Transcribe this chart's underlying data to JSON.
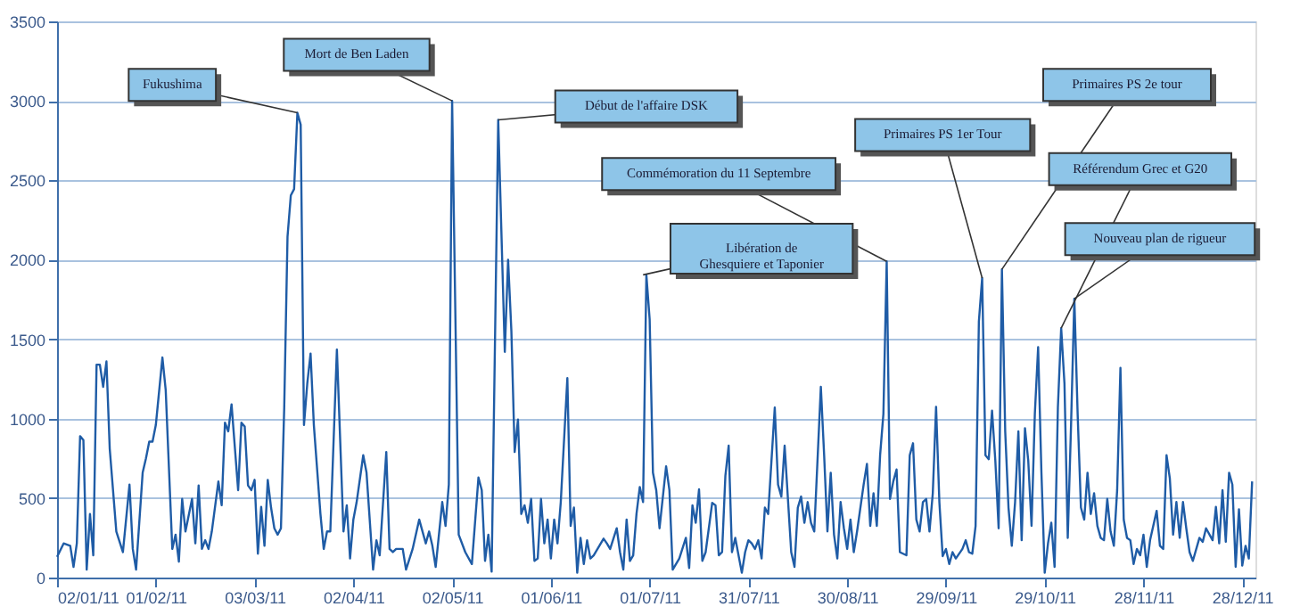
{
  "chart_data": {
    "type": "line",
    "x": [
      "2011-01-02",
      "2011-01-04",
      "2011-01-06",
      "2011-01-07",
      "2011-01-08",
      "2011-01-09",
      "2011-01-10",
      "2011-01-11",
      "2011-01-12",
      "2011-01-13",
      "2011-01-14",
      "2011-01-15",
      "2011-01-16",
      "2011-01-17",
      "2011-01-18",
      "2011-01-20",
      "2011-01-22",
      "2011-01-24",
      "2011-01-25",
      "2011-01-26",
      "2011-01-28",
      "2011-01-29",
      "2011-01-30",
      "2011-01-31",
      "2011-02-01",
      "2011-02-03",
      "2011-02-04",
      "2011-02-06",
      "2011-02-07",
      "2011-02-08",
      "2011-02-09",
      "2011-02-10",
      "2011-02-12",
      "2011-02-13",
      "2011-02-14",
      "2011-02-15",
      "2011-02-16",
      "2011-02-17",
      "2011-02-18",
      "2011-02-20",
      "2011-02-21",
      "2011-02-22",
      "2011-02-23",
      "2011-02-24",
      "2011-02-26",
      "2011-02-27",
      "2011-02-28",
      "2011-03-01",
      "2011-03-02",
      "2011-03-03",
      "2011-03-04",
      "2011-03-05",
      "2011-03-06",
      "2011-03-07",
      "2011-03-08",
      "2011-03-09",
      "2011-03-10",
      "2011-03-11",
      "2011-03-12",
      "2011-03-13",
      "2011-03-14",
      "2011-03-15",
      "2011-03-16",
      "2011-03-17",
      "2011-03-18",
      "2011-03-19",
      "2011-03-20",
      "2011-03-21",
      "2011-03-23",
      "2011-03-24",
      "2011-03-25",
      "2011-03-26",
      "2011-03-28",
      "2011-03-30",
      "2011-03-31",
      "2011-04-01",
      "2011-04-02",
      "2011-04-03",
      "2011-04-05",
      "2011-04-06",
      "2011-04-08",
      "2011-04-09",
      "2011-04-10",
      "2011-04-12",
      "2011-04-13",
      "2011-04-14",
      "2011-04-15",
      "2011-04-17",
      "2011-04-18",
      "2011-04-20",
      "2011-04-22",
      "2011-04-24",
      "2011-04-25",
      "2011-04-26",
      "2011-04-27",
      "2011-04-29",
      "2011-04-30",
      "2011-05-01",
      "2011-05-02",
      "2011-05-04",
      "2011-05-06",
      "2011-05-08",
      "2011-05-10",
      "2011-05-11",
      "2011-05-12",
      "2011-05-13",
      "2011-05-14",
      "2011-05-16",
      "2011-05-18",
      "2011-05-19",
      "2011-05-20",
      "2011-05-21",
      "2011-05-22",
      "2011-05-23",
      "2011-05-24",
      "2011-05-25",
      "2011-05-26",
      "2011-05-27",
      "2011-05-28",
      "2011-05-29",
      "2011-05-30",
      "2011-05-31",
      "2011-06-01",
      "2011-06-02",
      "2011-06-03",
      "2011-06-04",
      "2011-06-06",
      "2011-06-07",
      "2011-06-08",
      "2011-06-09",
      "2011-06-10",
      "2011-06-11",
      "2011-06-12",
      "2011-06-13",
      "2011-06-14",
      "2011-06-17",
      "2011-06-18",
      "2011-06-19",
      "2011-06-21",
      "2011-06-22",
      "2011-06-23",
      "2011-06-24",
      "2011-06-25",
      "2011-06-26",
      "2011-06-27",
      "2011-06-28",
      "2011-06-29",
      "2011-06-30",
      "2011-07-01",
      "2011-07-02",
      "2011-07-03",
      "2011-07-04",
      "2011-07-06",
      "2011-07-07",
      "2011-07-08",
      "2011-07-10",
      "2011-07-12",
      "2011-07-13",
      "2011-07-14",
      "2011-07-15",
      "2011-07-16",
      "2011-07-17",
      "2011-07-18",
      "2011-07-20",
      "2011-07-21",
      "2011-07-22",
      "2011-07-23",
      "2011-07-24",
      "2011-07-25",
      "2011-07-26",
      "2011-07-27",
      "2011-07-29",
      "2011-07-30",
      "2011-07-31",
      "2011-08-01",
      "2011-08-02",
      "2011-08-03",
      "2011-08-04",
      "2011-08-05",
      "2011-08-06",
      "2011-08-08",
      "2011-08-09",
      "2011-08-10",
      "2011-08-11",
      "2011-08-12",
      "2011-08-13",
      "2011-08-14",
      "2011-08-15",
      "2011-08-16",
      "2011-08-17",
      "2011-08-18",
      "2011-08-19",
      "2011-08-20",
      "2011-08-22",
      "2011-08-23",
      "2011-08-24",
      "2011-08-25",
      "2011-08-26",
      "2011-08-27",
      "2011-08-28",
      "2011-08-29",
      "2011-08-30",
      "2011-08-31",
      "2011-09-01",
      "2011-09-02",
      "2011-09-04",
      "2011-09-05",
      "2011-09-06",
      "2011-09-07",
      "2011-09-08",
      "2011-09-09",
      "2011-09-10",
      "2011-09-11",
      "2011-09-12",
      "2011-09-13",
      "2011-09-14",
      "2011-09-15",
      "2011-09-17",
      "2011-09-18",
      "2011-09-19",
      "2011-09-20",
      "2011-09-21",
      "2011-09-22",
      "2011-09-23",
      "2011-09-24",
      "2011-09-25",
      "2011-09-26",
      "2011-09-27",
      "2011-09-28",
      "2011-09-29",
      "2011-09-30",
      "2011-10-01",
      "2011-10-02",
      "2011-10-04",
      "2011-10-05",
      "2011-10-06",
      "2011-10-07",
      "2011-10-08",
      "2011-10-09",
      "2011-10-10",
      "2011-10-11",
      "2011-10-12",
      "2011-10-13",
      "2011-10-14",
      "2011-10-15",
      "2011-10-16",
      "2011-10-17",
      "2011-10-18",
      "2011-10-19",
      "2011-10-20",
      "2011-10-21",
      "2011-10-22",
      "2011-10-23",
      "2011-10-24",
      "2011-10-25",
      "2011-10-26",
      "2011-10-27",
      "2011-10-28",
      "2011-10-29",
      "2011-10-30",
      "2011-10-31",
      "2011-11-01",
      "2011-11-02",
      "2011-11-03",
      "2011-11-04",
      "2011-11-05",
      "2011-11-06",
      "2011-11-07",
      "2011-11-08",
      "2011-11-09",
      "2011-11-10",
      "2011-11-11",
      "2011-11-12",
      "2011-11-13",
      "2011-11-14",
      "2011-11-15",
      "2011-11-16",
      "2011-11-17",
      "2011-11-18",
      "2011-11-19",
      "2011-11-20",
      "2011-11-21",
      "2011-11-22",
      "2011-11-23",
      "2011-11-24",
      "2011-11-25",
      "2011-11-26",
      "2011-11-27",
      "2011-11-28",
      "2011-11-29",
      "2011-11-30",
      "2011-12-02",
      "2011-12-03",
      "2011-12-04",
      "2011-12-05",
      "2011-12-06",
      "2011-12-07",
      "2011-12-08",
      "2011-12-09",
      "2011-12-10",
      "2011-12-11",
      "2011-12-12",
      "2011-12-13",
      "2011-12-15",
      "2011-12-16",
      "2011-12-17",
      "2011-12-19",
      "2011-12-20",
      "2011-12-21",
      "2011-12-22",
      "2011-12-23",
      "2011-12-24",
      "2011-12-25",
      "2011-12-26",
      "2011-12-27",
      "2011-12-28",
      "2011-12-29",
      "2011-12-30",
      "2011-12-31"
    ],
    "series": [
      {
        "color": "#1f5ca6",
        "values": [
          130,
          215,
          200,
          67,
          215,
          890,
          865,
          50,
          400,
          140,
          1340,
          1340,
          1200,
          1360,
          810,
          290,
          160,
          585,
          180,
          50,
          660,
          750,
          855,
          855,
          960,
          1385,
          1180,
          180,
          270,
          100,
          495,
          290,
          495,
          215,
          580,
          180,
          235,
          180,
          290,
          605,
          455,
          975,
          920,
          1090,
          550,
          975,
          950,
          580,
          550,
          615,
          150,
          445,
          200,
          615,
          440,
          310,
          270,
          310,
          1070,
          2145,
          2405,
          2445,
          2925,
          2850,
          960,
          1220,
          1410,
          960,
          400,
          180,
          290,
          290,
          1435,
          290,
          455,
          120,
          365,
          475,
          770,
          660,
          50,
          235,
          140,
          790,
          180,
          160,
          180,
          180,
          50,
          180,
          365,
          215,
          290,
          200,
          67,
          475,
          325,
          585,
          3000,
          270,
          160,
          85,
          630,
          550,
          105,
          270,
          37,
          2880,
          1420,
          2000,
          1550,
          790,
          995,
          400,
          455,
          345,
          495,
          105,
          120,
          495,
          215,
          365,
          120,
          365,
          215,
          475,
          1255,
          325,
          440,
          30,
          250,
          85,
          235,
          120,
          140,
          245,
          215,
          180,
          310,
          160,
          50,
          365,
          105,
          140,
          400,
          570,
          475,
          1905,
          1625,
          660,
          550,
          310,
          700,
          550,
          50,
          120,
          250,
          60,
          455,
          345,
          555,
          105,
          160,
          470,
          455,
          140,
          160,
          640,
          830,
          160,
          250,
          30,
          160,
          235,
          215,
          180,
          235,
          120,
          440,
          400,
          1070,
          585,
          510,
          830,
          495,
          160,
          67,
          440,
          510,
          345,
          475,
          345,
          290,
          1200,
          770,
          290,
          660,
          270,
          120,
          475,
          310,
          180,
          365,
          160,
          290,
          585,
          715,
          325,
          530,
          325,
          770,
          1030,
          1990,
          495,
          605,
          680,
          160,
          140,
          770,
          845,
          365,
          290,
          475,
          495,
          290,
          530,
          1075,
          475,
          135,
          180,
          85,
          160,
          120,
          180,
          235,
          160,
          150,
          325,
          1610,
          1885,
          770,
          745,
          1050,
          735,
          310,
          1940,
          920,
          440,
          200,
          475,
          920,
          235,
          940,
          735,
          325,
          1030,
          1450,
          660,
          30,
          215,
          345,
          67,
          1070,
          1570,
          1220,
          250,
          960,
          1755,
          1030,
          440,
          365,
          660,
          400,
          530,
          325,
          250,
          235,
          495,
          290,
          200,
          550,
          1320,
          365,
          250,
          235,
          85,
          180,
          140,
          270,
          67,
          235,
          420,
          200,
          180,
          770,
          625,
          270,
          475,
          250,
          475,
          310,
          160,
          105,
          250,
          225,
          310,
          235,
          445,
          215,
          550,
          225,
          660,
          585,
          67,
          430,
          75,
          200,
          120,
          605
        ]
      }
    ],
    "xlim": [
      "2011-01-02",
      "2012-01-01"
    ],
    "xticks": [
      {
        "value": "2011-01-02",
        "label": "02/01/11"
      },
      {
        "value": "2011-02-01",
        "label": "01/02/11"
      },
      {
        "value": "2011-03-03",
        "label": "03/03/11"
      },
      {
        "value": "2011-04-02",
        "label": "02/04/11"
      },
      {
        "value": "2011-05-02",
        "label": "02/05/11"
      },
      {
        "value": "2011-06-01",
        "label": "01/06/11"
      },
      {
        "value": "2011-07-01",
        "label": "01/07/11"
      },
      {
        "value": "2011-07-31",
        "label": "31/07/11"
      },
      {
        "value": "2011-08-30",
        "label": "30/08/11"
      },
      {
        "value": "2011-09-29",
        "label": "29/09/11"
      },
      {
        "value": "2011-10-29",
        "label": "29/10/11"
      },
      {
        "value": "2011-11-28",
        "label": "28/11/11"
      },
      {
        "value": "2011-12-28",
        "label": "28/12/11"
      }
    ],
    "ylim": [
      0,
      3500
    ],
    "yticks": [
      0,
      500,
      1000,
      1500,
      2000,
      2500,
      3000,
      3500
    ],
    "grid": "y",
    "annotations": [
      {
        "text": "Fukushima",
        "x": "2011-03-16",
        "y": 2925
      },
      {
        "text": "Mort de Ben Laden",
        "x": "2011-05-02",
        "y": 3000
      },
      {
        "text": "Début de l'affaire DSK",
        "x": "2011-05-16",
        "y": 2880
      },
      {
        "text": "Commémoration du 11 Septembre",
        "x": "2011-09-11",
        "y": 1990
      },
      {
        "text": "Libération de Ghesquiere et Taponier",
        "x": "2011-06-29",
        "y": 1905
      },
      {
        "text": "Primaires PS 1er Tour",
        "x": "2011-10-10",
        "y": 1885
      },
      {
        "text": "Primaires PS 2e tour",
        "x": "2011-10-16",
        "y": 1940
      },
      {
        "text": "Référendum Grec et G20",
        "x": "2011-11-03",
        "y": 1570
      },
      {
        "text": "Nouveau plan de rigueur",
        "x": "2011-11-07",
        "y": 1755
      }
    ]
  }
}
